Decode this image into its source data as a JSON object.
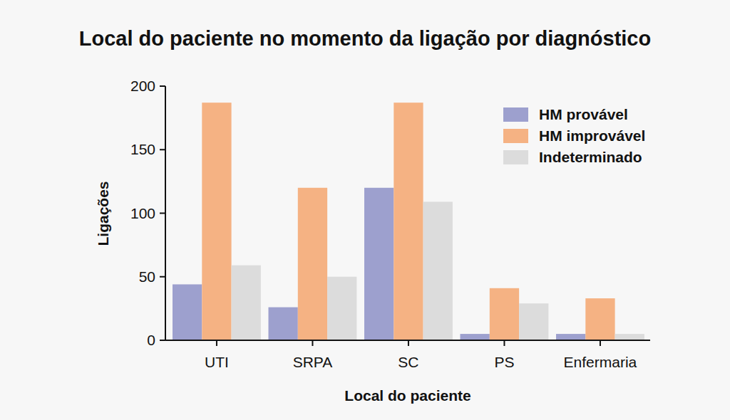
{
  "chart_data": {
    "type": "bar",
    "title": "Local do paciente no momento da ligação por diagnóstico",
    "x_label": "Local do paciente",
    "y_label": "Ligações",
    "categories": [
      "UTI",
      "SRPA",
      "SC",
      "PS",
      "Enfermaria"
    ],
    "series": [
      {
        "name": "HM provável",
        "color": "#9da0ce",
        "values": [
          44,
          26,
          120,
          5,
          5
        ]
      },
      {
        "name": "HM improvável",
        "color": "#f5b283",
        "values": [
          187,
          120,
          187,
          41,
          33
        ]
      },
      {
        "name": "Indeterminado",
        "color": "#dcdcdc",
        "values": [
          59,
          50,
          109,
          29,
          5
        ]
      }
    ],
    "ylim": [
      0,
      200
    ],
    "yticks": [
      0,
      50,
      100,
      150,
      200
    ],
    "grid": false,
    "legend": "upper right"
  }
}
